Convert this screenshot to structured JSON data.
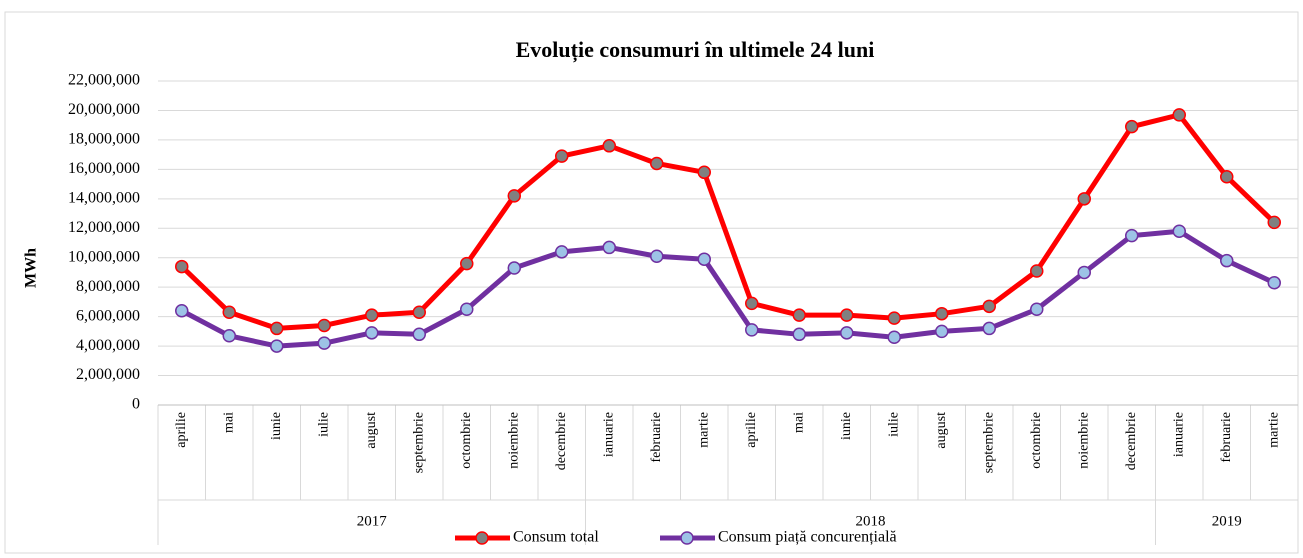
{
  "chart_data": {
    "type": "line",
    "title": "Evoluție consumuri în ultimele 24 luni",
    "y_label": "MWh",
    "categories": [
      "aprilie",
      "mai",
      "iunie",
      "iulie",
      "august",
      "septembrie",
      "octombrie",
      "noiembrie",
      "decembrie",
      "ianuarie",
      "februarie",
      "martie",
      "aprilie",
      "mai",
      "iunie",
      "iulie",
      "august",
      "septembrie",
      "octombrie",
      "noiembrie",
      "decembrie",
      "ianuarie",
      "februarie",
      "martie"
    ],
    "groups": [
      {
        "label": "2017",
        "count": 9
      },
      {
        "label": "2018",
        "count": 12
      },
      {
        "label": "2019",
        "count": 3
      }
    ],
    "series": [
      {
        "name": "Consum total",
        "color": "#ff0000",
        "marker_color": "#808080",
        "values": [
          9400000,
          6300000,
          5200000,
          5400000,
          6100000,
          6300000,
          9600000,
          14200000,
          16900000,
          17600000,
          16400000,
          15800000,
          6900000,
          6100000,
          6100000,
          5900000,
          6200000,
          6700000,
          9100000,
          14000000,
          18900000,
          19700000,
          15500000,
          12400000
        ]
      },
      {
        "name": "Consum piață concurențială",
        "color": "#7030a0",
        "marker_color": "#9dc3e6",
        "values": [
          6400000,
          4700000,
          4000000,
          4200000,
          4900000,
          4800000,
          6500000,
          9300000,
          10400000,
          10700000,
          10100000,
          9900000,
          5100000,
          4800000,
          4900000,
          4600000,
          5000000,
          5200000,
          6500000,
          9000000,
          11500000,
          11800000,
          9800000,
          8300000
        ]
      }
    ],
    "ylim": [
      0,
      22000000
    ],
    "yticks": [
      0,
      {
        "value": 2000000,
        "label": "2,000,000"
      },
      {
        "value": 4000000,
        "label": "4,000,000"
      },
      {
        "value": 6000000,
        "label": "6,000,000"
      },
      {
        "value": 8000000,
        "label": "8,000,000"
      },
      {
        "value": 10000000,
        "label": "10,000,000"
      },
      {
        "value": 12000000,
        "label": "12,000,000"
      },
      {
        "value": 14000000,
        "label": "14,000,000"
      },
      {
        "value": 16000000,
        "label": "16,000,000"
      },
      {
        "value": 18000000,
        "label": "18,000,000"
      },
      {
        "value": 20000000,
        "label": "20,000,000"
      },
      {
        "value": 22000000,
        "label": "22,000,000"
      }
    ],
    "grid": true,
    "legend": "bottom"
  }
}
